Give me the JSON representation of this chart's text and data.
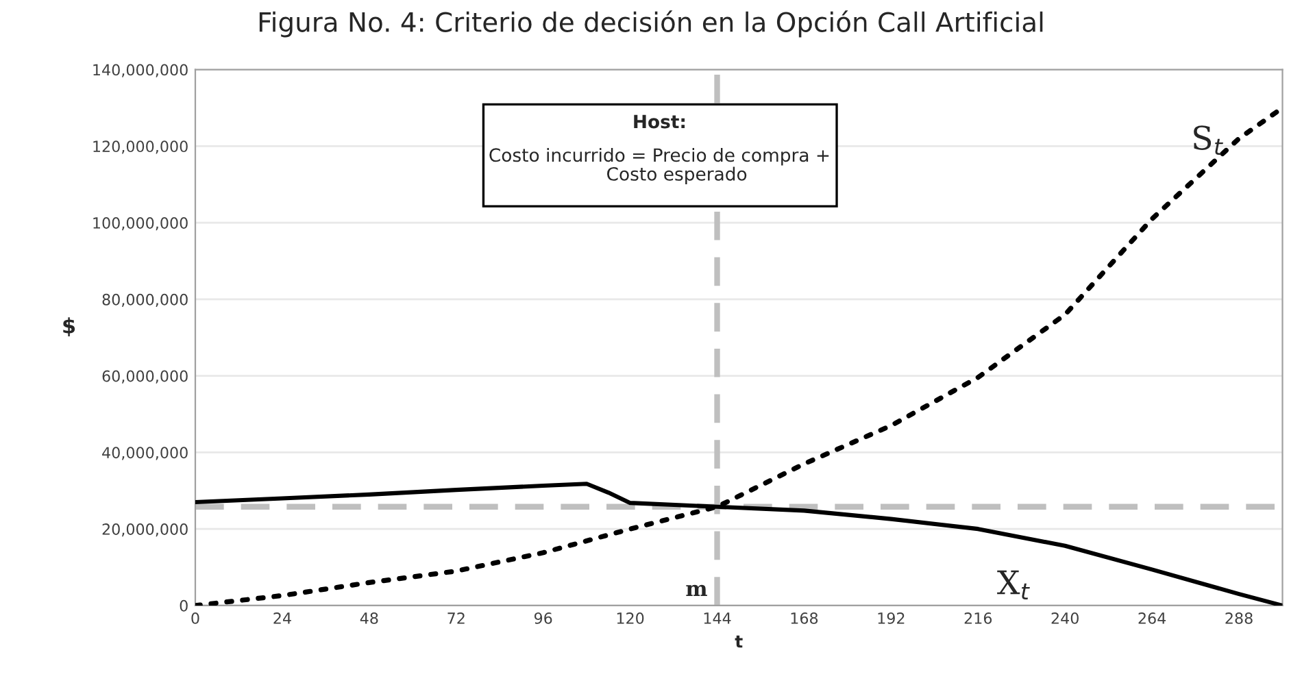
{
  "chart_data": {
    "type": "line",
    "title": "Figura No. 4: Criterio de decisión en la Opción Call Artificial",
    "xlabel": "t",
    "ylabel": "$",
    "xlim": [
      0,
      300
    ],
    "xticks": [
      0,
      24,
      48,
      72,
      96,
      120,
      144,
      168,
      192,
      216,
      240,
      264,
      288
    ],
    "ylim": [
      0,
      140000000
    ],
    "yticks": [
      {
        "value": 0,
        "label": "0"
      },
      {
        "value": 20000000,
        "label": "20,000,000"
      },
      {
        "value": 40000000,
        "label": "40,000,000"
      },
      {
        "value": 60000000,
        "label": "60,000,000"
      },
      {
        "value": 80000000,
        "label": "80,000,000"
      },
      {
        "value": 100000000,
        "label": "100,000,000"
      },
      {
        "value": 120000000,
        "label": "120,000,000"
      },
      {
        "value": 140000000,
        "label": "140,000,000"
      }
    ],
    "grid": "y",
    "legend": false,
    "series": [
      {
        "name": "S$_{t}$",
        "color": "#000000",
        "line_style": "dotted",
        "x": [
          0,
          24,
          48,
          72,
          96,
          120,
          144,
          168,
          192,
          216,
          240,
          264,
          288,
          300
        ],
        "values": [
          0,
          2600000,
          6000000,
          9000000,
          13800000,
          20000000,
          25800000,
          37000000,
          47000000,
          59600000,
          76000000,
          101000000,
          122000000,
          130000000
        ]
      },
      {
        "name": "X$_{t}$",
        "color": "#000000",
        "line_style": "solid",
        "x": [
          0,
          24,
          48,
          72,
          96,
          108,
          114,
          120,
          144,
          168,
          192,
          216,
          240,
          264,
          288,
          300
        ],
        "values": [
          27000000,
          28000000,
          29000000,
          30200000,
          31300000,
          31800000,
          29500000,
          26800000,
          25800000,
          24800000,
          22600000,
          20000000,
          15600000,
          9400000,
          3000000,
          0
        ]
      }
    ],
    "ref_lines": [
      {
        "axis": "y",
        "value": 25800000,
        "color": "#bfbfbf",
        "line_style": "dashed"
      },
      {
        "axis": "x",
        "value": 144,
        "color": "#bfbfbf",
        "line_style": "dashed"
      }
    ],
    "annotations": [
      "Host:",
      "Costo incurrido = Precio de compra +\n      Costo esperado",
      {
        "text": "m",
        "x": 144,
        "y": 4000000
      }
    ]
  }
}
